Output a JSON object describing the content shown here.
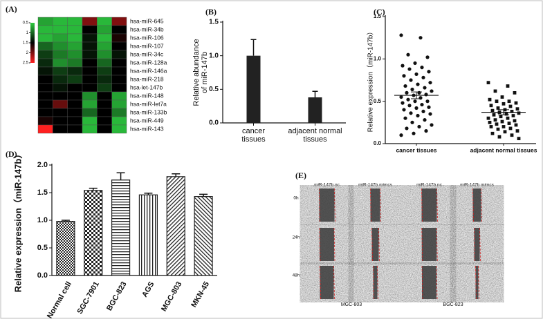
{
  "chart_data": [
    {
      "type": "heatmap",
      "label": "(A)",
      "rows": [
        "hsa-miR-645",
        "hsa-miR-34b",
        "hsa-miR-106",
        "hsa-miR-107",
        "hsa-miR-34c",
        "hsa-miR-128a",
        "hsa-miR-146a",
        "hsa-miR-218",
        "hsa-let-147b",
        "hsa-miR-148",
        "hsa-miR-let7a",
        "hsa-miR-133b",
        "hsa-miR-449",
        "hsa-miR-143"
      ],
      "values": [
        [
          0.7,
          0.6,
          0.6,
          2.0,
          0.6,
          2.0
        ],
        [
          0.6,
          0.6,
          0.6,
          1.5,
          0.7,
          1.5
        ],
        [
          0.6,
          0.7,
          0.6,
          1.4,
          0.6,
          1.6
        ],
        [
          1.0,
          0.8,
          0.7,
          1.4,
          0.7,
          1.5
        ],
        [
          1.2,
          0.9,
          0.8,
          1.4,
          0.8,
          1.4
        ],
        [
          1.3,
          0.8,
          0.9,
          1.5,
          1.0,
          1.5
        ],
        [
          1.4,
          1.2,
          1.3,
          1.5,
          1.2,
          1.5
        ],
        [
          1.5,
          1.3,
          1.2,
          1.5,
          1.3,
          1.5
        ],
        [
          1.5,
          1.4,
          1.5,
          1.5,
          1.2,
          1.5
        ],
        [
          1.5,
          1.5,
          1.5,
          0.8,
          1.5,
          0.7
        ],
        [
          1.5,
          1.9,
          1.5,
          0.7,
          1.5,
          0.7
        ],
        [
          1.5,
          1.5,
          1.5,
          1.0,
          1.5,
          0.9
        ],
        [
          1.6,
          1.5,
          1.5,
          0.6,
          1.5,
          0.6
        ],
        [
          2.5,
          1.5,
          1.5,
          0.6,
          1.5,
          0.6
        ]
      ],
      "zlim": [
        0.5,
        2.5
      ],
      "zticks": [
        0.5,
        1,
        1.5,
        2,
        2.5
      ],
      "colormap": [
        "#2ecc40",
        "#000000",
        "#ff2020"
      ]
    },
    {
      "type": "bar",
      "label": "(B)",
      "ylabel": "Relative abundance\nof miR-147b",
      "categories": [
        "cancer\ntissues",
        "adjacent normal\ntissues"
      ],
      "values": [
        1.0,
        0.38
      ],
      "errors": [
        0.24,
        0.09
      ],
      "color": "#222222",
      "ylim": [
        0,
        1.5
      ],
      "yticks": [
        {
          "value": 0,
          "label": "0.0"
        },
        {
          "value": 0.5,
          "label": "0.5"
        },
        {
          "value": 1,
          "label": "1.0"
        },
        {
          "value": 1.5,
          "label": "1.5"
        }
      ]
    },
    {
      "type": "scatter",
      "label": "(C)",
      "ylabel": "Relative expression（miR-147b）",
      "categories": [
        "cancer tissues",
        "adjacent normal tissues"
      ],
      "series": [
        {
          "marker": "circle",
          "values": [
            1.28,
            1.25,
            1.05,
            1.02,
            0.95,
            0.92,
            0.9,
            0.88,
            0.85,
            0.82,
            0.8,
            0.78,
            0.75,
            0.72,
            0.7,
            0.68,
            0.66,
            0.64,
            0.62,
            0.6,
            0.6,
            0.58,
            0.57,
            0.55,
            0.54,
            0.52,
            0.5,
            0.5,
            0.48,
            0.46,
            0.45,
            0.43,
            0.42,
            0.4,
            0.38,
            0.36,
            0.35,
            0.33,
            0.3,
            0.28,
            0.25,
            0.22,
            0.2,
            0.18,
            0.15,
            0.12,
            0.1
          ],
          "mean": 0.57,
          "error": 0.04
        },
        {
          "marker": "square",
          "values": [
            0.72,
            0.68,
            0.62,
            0.6,
            0.55,
            0.52,
            0.5,
            0.5,
            0.48,
            0.47,
            0.45,
            0.44,
            0.42,
            0.41,
            0.4,
            0.39,
            0.38,
            0.37,
            0.36,
            0.35,
            0.34,
            0.33,
            0.32,
            0.3,
            0.3,
            0.28,
            0.27,
            0.26,
            0.25,
            0.24,
            0.23,
            0.22,
            0.2,
            0.2,
            0.18,
            0.17,
            0.15,
            0.14,
            0.12,
            0.1,
            0.08,
            0.06
          ],
          "mean": 0.37,
          "error": 0.03
        }
      ],
      "color": "#111111",
      "ylim": [
        0,
        1.5
      ],
      "yticks": [
        {
          "value": 0,
          "label": "0.0"
        },
        {
          "value": 0.5,
          "label": "0.5"
        },
        {
          "value": 1,
          "label": "1.0"
        },
        {
          "value": 1.5,
          "label": "1.5"
        }
      ]
    },
    {
      "type": "patternbar",
      "label": "(D)",
      "ylabel": "Relative expression（miR-147b）",
      "categories": [
        "Normal cell",
        "SGC-7901",
        "BGC-823",
        "AGS",
        "MGC-803",
        "MKN-45"
      ],
      "values": [
        0.98,
        1.54,
        1.73,
        1.46,
        1.79,
        1.43
      ],
      "errors": [
        0.02,
        0.04,
        0.13,
        0.03,
        0.05,
        0.04
      ],
      "color": "#222222",
      "ylim": [
        0,
        2
      ],
      "yticks": [
        {
          "value": 0,
          "label": "0.0"
        },
        {
          "value": 0.5,
          "label": "0.5"
        },
        {
          "value": 1,
          "label": "1.0"
        },
        {
          "value": 1.5,
          "label": "1.5"
        },
        {
          "value": 2,
          "label": "2.0"
        }
      ]
    }
  ],
  "panel_e": {
    "label": "(E)",
    "columns": [
      "miR-147b nc",
      "miR-147b mimcs",
      "miR-147b nc",
      "miR-147b mimcs"
    ],
    "rows": [
      "0h",
      "24h",
      "48h"
    ],
    "groups": [
      "MGC-803",
      "BGC-823"
    ]
  }
}
